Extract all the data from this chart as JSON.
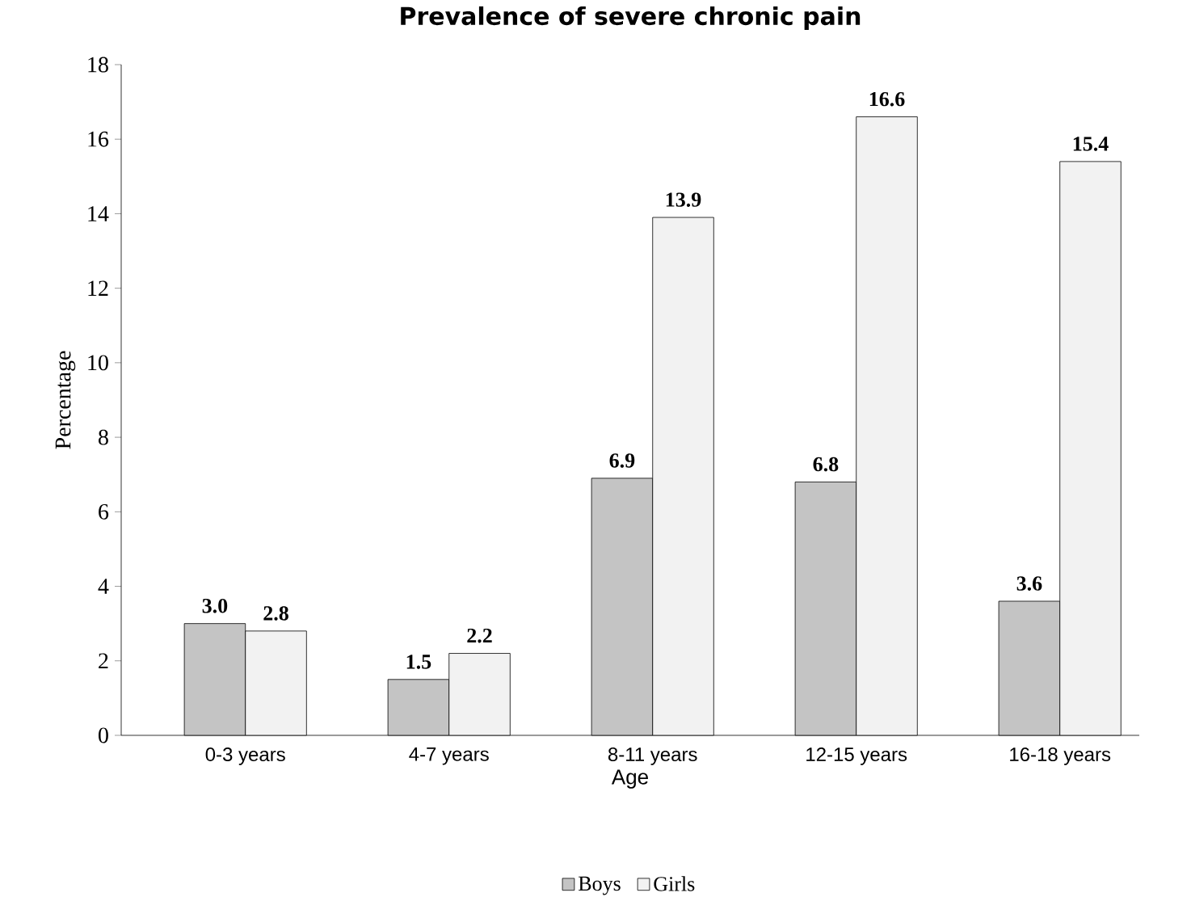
{
  "chart_data": {
    "type": "bar",
    "title": "Prevalence of severe chronic pain",
    "xlabel": "Age",
    "ylabel": "Percentage",
    "categories": [
      "0-3 years",
      "4-7 years",
      "8-11 years",
      "12-15 years",
      "16-18 years"
    ],
    "series": [
      {
        "name": "Boys",
        "color": "#c4c4c4",
        "values": [
          3.0,
          1.5,
          6.9,
          6.8,
          3.6
        ],
        "value_labels": [
          "3.0",
          "1.5",
          "6.9",
          "6.8",
          "3.6"
        ]
      },
      {
        "name": "Girls",
        "color": "#f2f2f2",
        "values": [
          2.8,
          2.2,
          13.9,
          16.6,
          15.4
        ],
        "value_labels": [
          "2.8",
          "2.2",
          "13.9",
          "16.6",
          "15.4"
        ]
      }
    ],
    "ylim": [
      0,
      18
    ],
    "yticks": [
      0,
      2,
      4,
      6,
      8,
      10,
      12,
      14,
      16,
      18
    ],
    "legend": "bottom"
  }
}
